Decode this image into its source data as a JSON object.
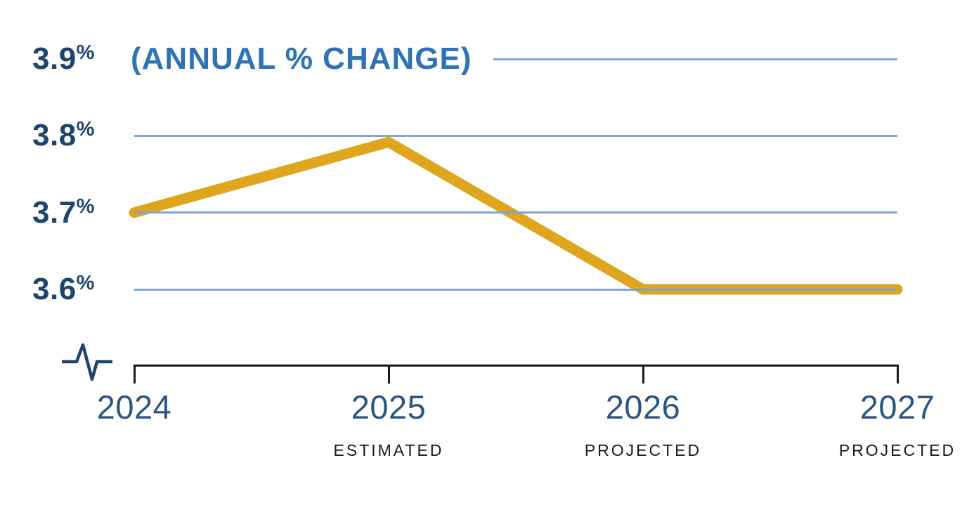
{
  "chart_data": {
    "type": "line",
    "title": "(ANNUAL % CHANGE)",
    "unit": "%",
    "categories": [
      "2024",
      "2025",
      "2026",
      "2027"
    ],
    "category_sublabels": [
      "",
      "ESTIMATED",
      "PROJECTED",
      "PROJECTED"
    ],
    "values": [
      3.7,
      3.8,
      3.6,
      3.6
    ],
    "yticks": [
      3.9,
      3.8,
      3.7,
      3.6
    ],
    "ylim": [
      3.6,
      3.9
    ],
    "axis_break": true,
    "grid": true,
    "legend": "none",
    "colors": {
      "line": "#DFA51C",
      "gridline": "#7EA6D8",
      "y_labels": "#1E4470",
      "year_labels": "#2A5682",
      "title": "#2E74B5",
      "sublabels": "#1a1a1a",
      "axis": "#1a1a1a"
    }
  }
}
